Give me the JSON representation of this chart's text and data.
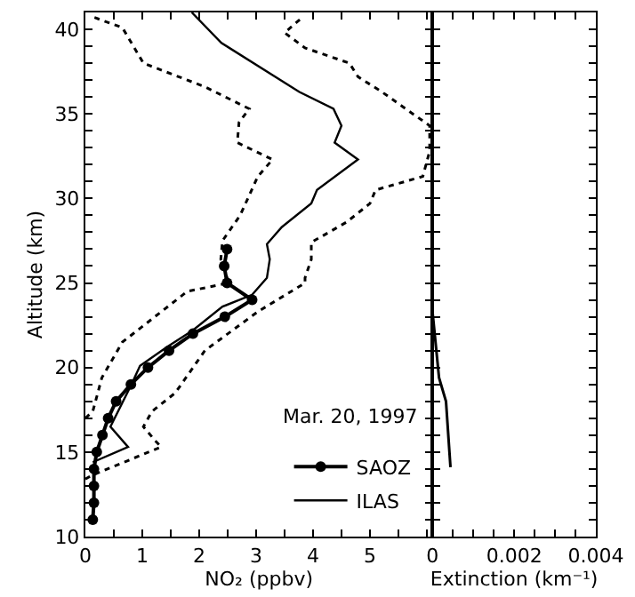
{
  "chart_data": [
    {
      "type": "line",
      "xlabel": "NO₂ (ppbv)",
      "ylabel": "Altitude (km)",
      "annotations": [
        "Mar. 20, 1997"
      ],
      "legend": "bottom right",
      "grid": false,
      "xlim": [
        0,
        6.1
      ],
      "xticks": [
        0,
        {
          "value": 0.5,
          "label": null
        },
        1,
        {
          "value": 1.5,
          "label": null
        },
        2,
        {
          "value": 2.5,
          "label": null
        },
        3,
        {
          "value": 3.5,
          "label": null
        },
        4,
        {
          "value": 4.5,
          "label": null
        },
        5,
        {
          "value": 5.5,
          "label": null
        },
        {
          "value": 6,
          "label": null
        }
      ],
      "ylim": [
        10,
        41
      ],
      "yticks": [
        10,
        {
          "value": 11,
          "label": null
        },
        {
          "value": 12,
          "label": null
        },
        {
          "value": 13,
          "label": null
        },
        {
          "value": 14,
          "label": null
        },
        15,
        {
          "value": 16,
          "label": null
        },
        {
          "value": 17,
          "label": null
        },
        {
          "value": 18,
          "label": null
        },
        {
          "value": 19,
          "label": null
        },
        20,
        {
          "value": 21,
          "label": null
        },
        {
          "value": 22,
          "label": null
        },
        {
          "value": 23,
          "label": null
        },
        {
          "value": 24,
          "label": null
        },
        25,
        {
          "value": 26,
          "label": null
        },
        {
          "value": 27,
          "label": null
        },
        {
          "value": 28,
          "label": null
        },
        {
          "value": 29,
          "label": null
        },
        30,
        {
          "value": 31,
          "label": null
        },
        {
          "value": 32,
          "label": null
        },
        {
          "value": 33,
          "label": null
        },
        {
          "value": 34,
          "label": null
        },
        35,
        {
          "value": 36,
          "label": null
        },
        {
          "value": 37,
          "label": null
        },
        {
          "value": 38,
          "label": null
        },
        {
          "value": 39,
          "label": null
        },
        40
      ],
      "series": [
        {
          "name": "SAOZ",
          "color": "#000000",
          "marker": "circle",
          "line_style": "solid",
          "x": [
            0.13,
            0.15,
            0.15,
            0.15,
            0.2,
            0.3,
            0.4,
            0.54,
            0.8,
            1.1,
            1.47,
            1.89,
            2.45,
            2.93,
            2.49,
            2.44,
            2.49
          ],
          "values": [
            11,
            12,
            13,
            14,
            15,
            16,
            17,
            18,
            19,
            20,
            21,
            22,
            23,
            24,
            25,
            26,
            27
          ]
        },
        {
          "name": "ILAS",
          "color": "#000000",
          "marker": "none",
          "line_style": "solid",
          "x": [
            0.13,
            0.75,
            0.44,
            0.81,
            0.96,
            1.43,
            1.89,
            2.41,
            2.93,
            3.19,
            3.24,
            3.19,
            3.45,
            3.97,
            4.07,
            4.79,
            4.38,
            4.5,
            4.36,
            3.76,
            2.39,
            1.87
          ],
          "values": [
            14.4,
            15.3,
            16.5,
            19.0,
            20.1,
            21.2,
            22.2,
            23.6,
            24.3,
            25.3,
            26.4,
            27.3,
            28.3,
            29.7,
            30.5,
            32.3,
            33.3,
            34.3,
            35.3,
            36.3,
            39.2,
            41
          ]
        },
        {
          "color": "#000000",
          "marker": "none",
          "line_style": "dotted",
          "x": [
            0.0,
            0.13,
            0.29,
            0.65,
            1.79,
            2.52,
            2.38,
            2.41,
            2.72,
            3.03,
            3.29,
            2.67,
            2.7,
            2.88,
            2.1,
            1.02,
            0.65,
            0.08
          ],
          "values": [
            17.0,
            17.4,
            19.4,
            21.5,
            24.5,
            25.0,
            26.4,
            27.5,
            29.0,
            31.3,
            32.3,
            33.3,
            34.5,
            35.3,
            36.6,
            38.0,
            40.1,
            40.8
          ]
        },
        {
          "color": "#000000",
          "marker": "none",
          "line_style": "dotted",
          "x": [
            0.0,
            0.1,
            1.33,
            1.22,
            1.02,
            1.17,
            1.58,
            2.1,
            3.03,
            3.86,
            3.86,
            3.97,
            3.97,
            4.59,
            5.0,
            5.1,
            5.93,
            6.05,
            6.05,
            5.21,
            4.79,
            4.64,
            3.86,
            3.5,
            3.81
          ],
          "values": [
            13.4,
            13.6,
            15.3,
            15.7,
            16.5,
            17.4,
            18.5,
            21.0,
            23.3,
            25.0,
            25.3,
            26.4,
            27.4,
            28.6,
            29.7,
            30.5,
            31.3,
            32.8,
            34.3,
            36.3,
            37.2,
            38.0,
            38.9,
            39.8,
            40.7
          ]
        }
      ]
    },
    {
      "type": "line",
      "xlabel": "Extinction (km⁻¹)",
      "tick_labels": "x",
      "grid": false,
      "xlim": [
        0,
        0.004
      ],
      "xticks": [
        0,
        {
          "value": 0.0005,
          "label": null
        },
        {
          "value": 0.001,
          "label": null
        },
        {
          "value": 0.0015,
          "label": null
        },
        0.002,
        {
          "value": 0.0025,
          "label": null
        },
        {
          "value": 0.003,
          "label": null
        },
        {
          "value": 0.0035,
          "label": null
        },
        0.004
      ],
      "ylim": [
        10,
        41
      ],
      "yticks": [
        10,
        {
          "value": 11,
          "label": null
        },
        {
          "value": 12,
          "label": null
        },
        {
          "value": 13,
          "label": null
        },
        {
          "value": 14,
          "label": null
        },
        15,
        {
          "value": 16,
          "label": null
        },
        {
          "value": 17,
          "label": null
        },
        {
          "value": 18,
          "label": null
        },
        {
          "value": 19,
          "label": null
        },
        20,
        {
          "value": 21,
          "label": null
        },
        {
          "value": 22,
          "label": null
        },
        {
          "value": 23,
          "label": null
        },
        {
          "value": 24,
          "label": null
        },
        25,
        {
          "value": 26,
          "label": null
        },
        {
          "value": 27,
          "label": null
        },
        {
          "value": 28,
          "label": null
        },
        {
          "value": 29,
          "label": null
        },
        30,
        {
          "value": 31,
          "label": null
        },
        {
          "value": 32,
          "label": null
        },
        {
          "value": 33,
          "label": null
        },
        {
          "value": 34,
          "label": null
        },
        35,
        {
          "value": 36,
          "label": null
        },
        {
          "value": 37,
          "label": null
        },
        {
          "value": 38,
          "label": null
        },
        {
          "value": 39,
          "label": null
        },
        40
      ],
      "series": [
        {
          "color": "#000000",
          "marker": "none",
          "line_style": "solid",
          "x": [
            0.0,
            0.0,
            0.00016,
            0.00033,
            0.00044
          ],
          "values": [
            40,
            23.3,
            19.4,
            18.0,
            14.1
          ]
        }
      ]
    }
  ]
}
